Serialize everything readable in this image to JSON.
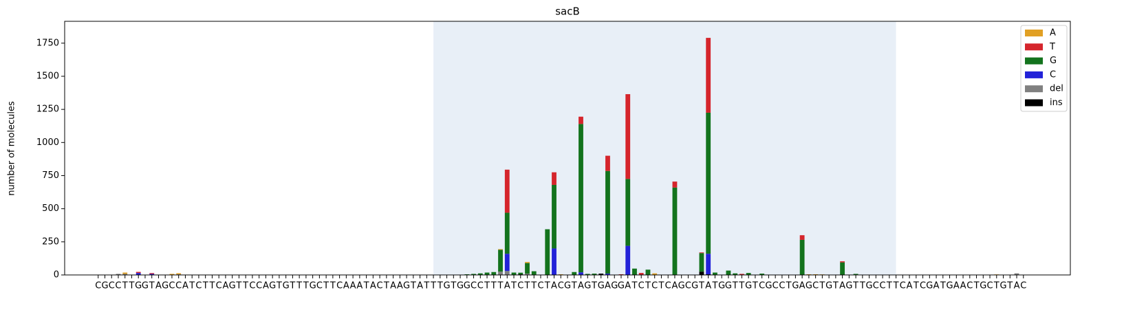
{
  "chart_data": {
    "type": "stacked_bar",
    "title": "sacB",
    "y_label": "number of molecules",
    "categories": [
      "C",
      "G",
      "C",
      "C",
      "T",
      "T",
      "G",
      "G",
      "T",
      "A",
      "G",
      "C",
      "C",
      "A",
      "T",
      "C",
      "T",
      "T",
      "C",
      "A",
      "G",
      "T",
      "T",
      "C",
      "C",
      "A",
      "G",
      "T",
      "G",
      "T",
      "T",
      "T",
      "G",
      "C",
      "T",
      "T",
      "C",
      "A",
      "A",
      "A",
      "T",
      "A",
      "C",
      "T",
      "A",
      "A",
      "G",
      "T",
      "A",
      "T",
      "T",
      "T",
      "G",
      "T",
      "G",
      "G",
      "C",
      "C",
      "T",
      "T",
      "T",
      "A",
      "T",
      "C",
      "T",
      "T",
      "C",
      "T",
      "A",
      "C",
      "G",
      "T",
      "A",
      "G",
      "T",
      "G",
      "A",
      "G",
      "G",
      "A",
      "T",
      "C",
      "T",
      "C",
      "T",
      "C",
      "A",
      "G",
      "C",
      "G",
      "T",
      "A",
      "T",
      "G",
      "G",
      "T",
      "T",
      "G",
      "T",
      "C",
      "G",
      "C",
      "C",
      "T",
      "G",
      "A",
      "G",
      "C",
      "T",
      "G",
      "T",
      "A",
      "G",
      "T",
      "T",
      "G",
      "C",
      "C",
      "T",
      "T",
      "C",
      "A",
      "T",
      "C",
      "G",
      "A",
      "T",
      "G",
      "A",
      "A",
      "C",
      "T",
      "G",
      "C",
      "T",
      "G",
      "T",
      "A",
      "C"
    ],
    "highlight": [
      50,
      119
    ],
    "ylim": [
      0,
      1915
    ],
    "yticks": [
      0,
      250,
      500,
      750,
      1000,
      1250,
      1500,
      1750
    ],
    "legend": "upper right",
    "series": [
      {
        "name": "A",
        "color": "#e1a024",
        "values": [
          0,
          0,
          0,
          0,
          10,
          0,
          0,
          0,
          0,
          0,
          0,
          8,
          8,
          0,
          0,
          0,
          0,
          0,
          0,
          0,
          0,
          0,
          0,
          0,
          0,
          0,
          0,
          0,
          0,
          0,
          0,
          0,
          0,
          0,
          0,
          0,
          0,
          0,
          0,
          0,
          0,
          0,
          0,
          0,
          0,
          0,
          0,
          0,
          0,
          0,
          0,
          0,
          0,
          0,
          0,
          0,
          0,
          0,
          0,
          0,
          5,
          0,
          0,
          0,
          8,
          0,
          0,
          0,
          0,
          5,
          0,
          0,
          0,
          0,
          0,
          0,
          0,
          0,
          0,
          0,
          0,
          0,
          0,
          12,
          0,
          0,
          0,
          0,
          0,
          0,
          0,
          0,
          0,
          0,
          0,
          0,
          0,
          0,
          0,
          0,
          0,
          0,
          0,
          0,
          0,
          0,
          5,
          5,
          4,
          0,
          0,
          0,
          0,
          0,
          0,
          0,
          0,
          0,
          0,
          0,
          0,
          0,
          0,
          0,
          0,
          0,
          0,
          0,
          0,
          0,
          0,
          0,
          0,
          0,
          4,
          0,
          0,
          0,
          0
        ]
      },
      {
        "name": "T",
        "color": "#d5252c",
        "values": [
          0,
          0,
          0,
          0,
          0,
          0,
          8,
          0,
          6,
          0,
          0,
          0,
          0,
          0,
          0,
          0,
          0,
          0,
          0,
          0,
          0,
          0,
          0,
          0,
          0,
          0,
          0,
          0,
          0,
          0,
          0,
          0,
          0,
          0,
          0,
          0,
          0,
          0,
          0,
          0,
          0,
          0,
          0,
          0,
          0,
          0,
          0,
          0,
          0,
          0,
          0,
          0,
          0,
          0,
          0,
          0,
          0,
          0,
          0,
          0,
          0,
          325,
          0,
          0,
          0,
          0,
          0,
          0,
          95,
          0,
          0,
          0,
          55,
          0,
          0,
          0,
          115,
          0,
          5,
          640,
          0,
          15,
          0,
          0,
          0,
          0,
          45,
          0,
          0,
          0,
          5,
          565,
          0,
          0,
          0,
          0,
          8,
          0,
          0,
          0,
          0,
          0,
          0,
          0,
          0,
          35,
          0,
          0,
          0,
          0,
          0,
          8,
          0,
          0,
          0,
          0,
          0,
          0,
          0,
          0,
          0,
          0,
          0,
          0,
          0,
          0,
          0,
          0,
          0,
          0,
          0,
          0,
          0,
          0,
          0,
          0,
          0,
          0,
          0
        ]
      },
      {
        "name": "G",
        "color": "#13731d",
        "values": [
          0,
          0,
          0,
          0,
          0,
          0,
          0,
          0,
          0,
          0,
          0,
          0,
          0,
          0,
          0,
          0,
          0,
          0,
          0,
          0,
          0,
          0,
          0,
          0,
          0,
          0,
          0,
          0,
          0,
          0,
          0,
          0,
          0,
          0,
          0,
          0,
          0,
          0,
          0,
          0,
          0,
          0,
          0,
          0,
          0,
          0,
          0,
          0,
          0,
          0,
          0,
          0,
          0,
          0,
          0,
          5,
          8,
          12,
          18,
          22,
          165,
          310,
          18,
          12,
          80,
          28,
          0,
          345,
          480,
          0,
          0,
          22,
          1120,
          8,
          10,
          0,
          775,
          0,
          0,
          505,
          48,
          0,
          40,
          0,
          0,
          0,
          660,
          0,
          0,
          0,
          140,
          1065,
          18,
          0,
          33,
          12,
          0,
          15,
          0,
          10,
          0,
          0,
          0,
          0,
          0,
          265,
          0,
          0,
          0,
          0,
          0,
          95,
          0,
          8,
          0,
          0,
          0,
          0,
          0,
          0,
          0,
          0,
          0,
          0,
          0,
          0,
          0,
          0,
          0,
          0,
          0,
          0,
          0,
          0,
          0,
          0,
          0,
          0,
          0
        ]
      },
      {
        "name": "C",
        "color": "#2222d8",
        "values": [
          0,
          0,
          0,
          0,
          0,
          0,
          15,
          0,
          8,
          0,
          0,
          0,
          0,
          0,
          0,
          0,
          0,
          0,
          0,
          0,
          0,
          0,
          0,
          0,
          0,
          0,
          0,
          0,
          0,
          0,
          0,
          0,
          0,
          0,
          0,
          0,
          0,
          0,
          0,
          0,
          0,
          0,
          0,
          0,
          0,
          0,
          0,
          0,
          0,
          0,
          0,
          0,
          0,
          0,
          0,
          0,
          0,
          0,
          0,
          0,
          0,
          130,
          0,
          0,
          0,
          0,
          0,
          0,
          200,
          0,
          0,
          0,
          20,
          0,
          0,
          0,
          10,
          0,
          0,
          220,
          0,
          0,
          0,
          0,
          0,
          0,
          0,
          0,
          0,
          0,
          0,
          155,
          0,
          0,
          0,
          0,
          0,
          0,
          0,
          0,
          0,
          0,
          0,
          0,
          0,
          0,
          0,
          0,
          0,
          0,
          0,
          0,
          0,
          0,
          0,
          0,
          0,
          0,
          0,
          0,
          0,
          0,
          0,
          0,
          0,
          0,
          0,
          0,
          0,
          0,
          0,
          0,
          0,
          0,
          0,
          0,
          0,
          0,
          0
        ]
      },
      {
        "name": "del",
        "color": "#808080",
        "values": [
          0,
          0,
          0,
          8,
          8,
          0,
          0,
          0,
          0,
          0,
          0,
          0,
          5,
          0,
          0,
          0,
          0,
          0,
          0,
          0,
          0,
          0,
          0,
          0,
          0,
          0,
          0,
          0,
          0,
          0,
          0,
          0,
          0,
          0,
          0,
          0,
          0,
          0,
          0,
          0,
          0,
          0,
          0,
          0,
          0,
          0,
          0,
          0,
          0,
          0,
          0,
          0,
          0,
          0,
          0,
          0,
          0,
          0,
          0,
          0,
          25,
          30,
          0,
          0,
          10,
          0,
          0,
          0,
          0,
          0,
          0,
          0,
          0,
          0,
          0,
          0,
          0,
          0,
          0,
          0,
          0,
          0,
          0,
          0,
          0,
          0,
          0,
          0,
          0,
          0,
          0,
          0,
          0,
          0,
          0,
          0,
          0,
          0,
          0,
          0,
          0,
          0,
          0,
          0,
          0,
          0,
          0,
          0,
          0,
          0,
          0,
          0,
          0,
          0,
          0,
          0,
          0,
          0,
          0,
          0,
          0,
          0,
          0,
          0,
          0,
          0,
          0,
          0,
          0,
          0,
          0,
          0,
          0,
          0,
          0,
          0,
          0,
          12,
          0
        ]
      },
      {
        "name": "ins",
        "color": "#000000",
        "values": [
          0,
          0,
          0,
          0,
          0,
          0,
          0,
          0,
          0,
          0,
          0,
          0,
          0,
          0,
          0,
          0,
          0,
          0,
          0,
          0,
          0,
          0,
          0,
          0,
          0,
          0,
          0,
          0,
          0,
          0,
          0,
          0,
          0,
          0,
          0,
          0,
          0,
          0,
          0,
          0,
          0,
          0,
          0,
          0,
          0,
          0,
          0,
          0,
          0,
          0,
          0,
          0,
          0,
          0,
          0,
          0,
          0,
          0,
          0,
          0,
          0,
          0,
          0,
          5,
          0,
          0,
          0,
          0,
          0,
          0,
          0,
          0,
          0,
          0,
          0,
          10,
          0,
          0,
          0,
          0,
          0,
          0,
          0,
          0,
          0,
          0,
          0,
          0,
          0,
          0,
          25,
          5,
          0,
          0,
          0,
          0,
          0,
          0,
          0,
          0,
          0,
          0,
          0,
          0,
          0,
          0,
          0,
          0,
          0,
          0,
          0,
          0,
          0,
          0,
          0,
          0,
          0,
          0,
          0,
          0,
          0,
          0,
          0,
          0,
          0,
          0,
          0,
          0,
          0,
          0,
          0,
          0,
          0,
          0,
          0,
          0,
          0,
          0,
          0
        ]
      }
    ]
  }
}
